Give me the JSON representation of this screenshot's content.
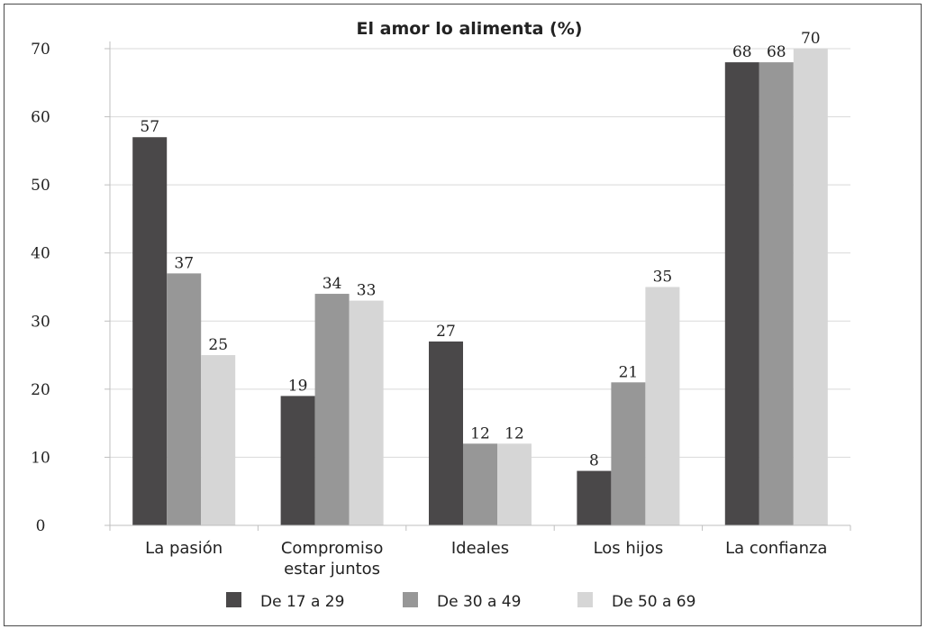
{
  "chart_data": {
    "type": "bar",
    "title": "El amor lo alimenta (%)",
    "xlabel": "",
    "ylabel": "",
    "ylim": [
      0,
      70
    ],
    "yticks": [
      "0",
      "10",
      "20",
      "30",
      "40",
      "50",
      "60",
      "70"
    ],
    "grid": true,
    "legend_position": "bottom",
    "categories": [
      [
        "La pasión"
      ],
      [
        "Compromiso",
        "estar juntos"
      ],
      [
        "Ideales"
      ],
      [
        "Los hijos"
      ],
      [
        "La confianza"
      ]
    ],
    "series": [
      {
        "name": "De 17 a 29",
        "color": "#4a4849",
        "values": [
          57,
          19,
          27,
          8,
          68
        ],
        "labels": [
          "57",
          "19",
          "27",
          "8",
          "68"
        ]
      },
      {
        "name": "De 30 a 49",
        "color": "#979797",
        "values": [
          37,
          34,
          12,
          21,
          68
        ],
        "labels": [
          "37",
          "34",
          "12",
          "21",
          "68"
        ]
      },
      {
        "name": "De 50 a 69",
        "color": "#d6d6d6",
        "values": [
          25,
          33,
          12,
          35,
          70
        ],
        "labels": [
          "25",
          "33",
          "12",
          "35",
          "70"
        ]
      }
    ]
  }
}
